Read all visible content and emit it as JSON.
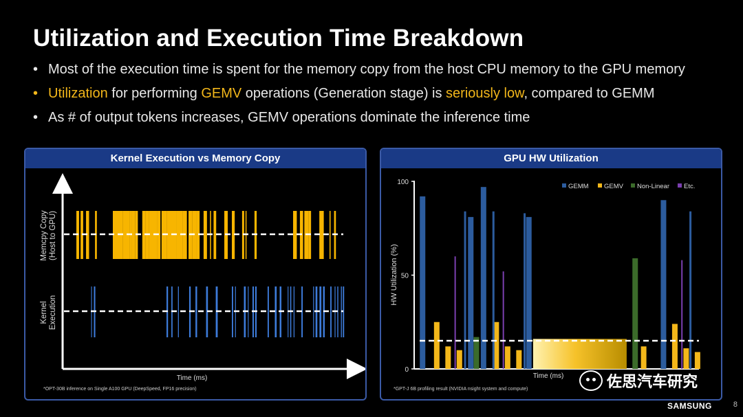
{
  "slide": {
    "title": "Utilization and Execution Time Breakdown",
    "page_number": "8",
    "brand": "SAMSUNG",
    "watermark": "佐思汽车研究",
    "accent_color": "#f3b71a"
  },
  "bullets": [
    {
      "segments": [
        {
          "text": "Most of the execution time is spent for the memory copy from the host CPU memory to the GPU memory",
          "hl": false
        }
      ]
    },
    {
      "segments": [
        {
          "text": "Utilization",
          "hl": true
        },
        {
          "text": " for performing ",
          "hl": false
        },
        {
          "text": "GEMV",
          "hl": true
        },
        {
          "text": " operations (Generation stage) is ",
          "hl": false
        },
        {
          "text": "seriously low",
          "hl": true
        },
        {
          "text": ", compared to GEMM",
          "hl": false
        }
      ],
      "hl_dot": true
    },
    {
      "segments": [
        {
          "text": "As # of output tokens increases, GEMV operations dominate the inference time",
          "hl": false
        }
      ]
    }
  ],
  "left_panel": {
    "title": "Kernel Execution vs Memory Copy",
    "ylabel_top": [
      "Memcpy Copy",
      "(Host to GPU)"
    ],
    "ylabel_bottom": [
      "Kernel",
      "Execution"
    ],
    "xlabel": "Time (ms)",
    "footnote": "*OPT-30B inference on Single A100 GPU (DeepSpeed, FP16 precision)",
    "memcpy_color": "#f7b500",
    "kernel_color": "#3d7bd9"
  },
  "chart_data": {
    "type": "bar",
    "title": "GPU HW Utilization",
    "ylabel": "HW Utilization (%)",
    "xlabel": "Time (ms)",
    "ylim": [
      0,
      100
    ],
    "yticks": [
      "0",
      "50",
      "100"
    ],
    "threshold": 15,
    "footnote": "*GPT-J 6B profiling result (NVIDIA nsight system and compute)",
    "legend": [
      {
        "name": "GEMM",
        "color": "#2c5c9e"
      },
      {
        "name": "GEMV",
        "color": "#f3b71a"
      },
      {
        "name": "Non-Linear",
        "color": "#3b6b2a"
      },
      {
        "name": "Etc.",
        "color": "#7b3fb0"
      }
    ],
    "bars": [
      {
        "cat": "GEMM",
        "t": 2,
        "v": 92
      },
      {
        "cat": "GEMV",
        "t": 7,
        "v": 25
      },
      {
        "cat": "GEMV",
        "t": 11,
        "v": 12
      },
      {
        "cat": "Etc.",
        "t": 13.5,
        "v": 60
      },
      {
        "cat": "GEMV",
        "t": 15,
        "v": 10
      },
      {
        "cat": "GEMM",
        "t": 19,
        "v": 81
      },
      {
        "cat": "Non-Linear",
        "t": 21,
        "v": 17
      },
      {
        "cat": "GEMM",
        "t": 23.5,
        "v": 97
      },
      {
        "cat": "GEMV",
        "t": 28,
        "v": 25
      },
      {
        "cat": "Etc.",
        "t": 30.5,
        "v": 52
      },
      {
        "cat": "GEMV",
        "t": 32,
        "v": 12
      },
      {
        "cat": "GEMV",
        "t": 36,
        "v": 10
      },
      {
        "cat": "GEMM",
        "t": 39.5,
        "v": 81
      },
      {
        "cat": "Non-Linear",
        "t": 77,
        "v": 59
      },
      {
        "cat": "GEMV",
        "t": 80,
        "v": 12
      },
      {
        "cat": "GEMM",
        "t": 87,
        "v": 90
      },
      {
        "cat": "GEMV",
        "t": 91,
        "v": 24
      },
      {
        "cat": "Etc.",
        "t": 93.5,
        "v": 58
      },
      {
        "cat": "GEMV",
        "t": 95,
        "v": 11
      },
      {
        "cat": "GEMV",
        "t": 99,
        "v": 9
      }
    ],
    "thin_bars": [
      {
        "cat": "GEMM",
        "t": 17,
        "v": 84
      },
      {
        "cat": "GEMM",
        "t": 27,
        "v": 84
      },
      {
        "cat": "GEMM",
        "t": 38,
        "v": 83
      },
      {
        "cat": "GEMM",
        "t": 96.5,
        "v": 84
      }
    ],
    "blocks": [
      {
        "cat": "GEMV",
        "t0": 41,
        "t1": 74,
        "v": 16
      }
    ]
  }
}
